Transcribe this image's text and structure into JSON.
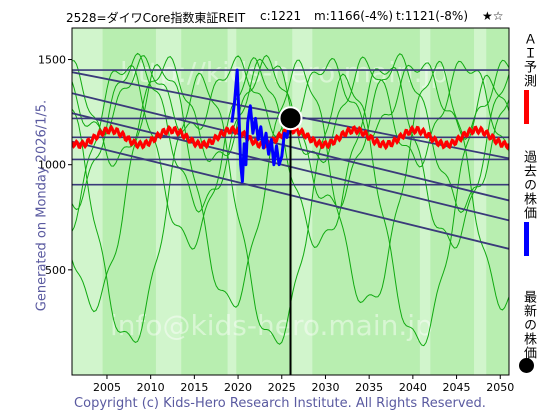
{
  "header": {
    "code_name": "2528=ダイワCore指数東証REIT",
    "current": "c:1221",
    "medium": "m:1166(-4%)",
    "target": "t:1121(-8%)",
    "stars": "★☆"
  },
  "generated": "Generated on Monday 2026/1/5.",
  "legend": {
    "ai_forecast": "ＡＩ予測",
    "past_price": "過去の株価",
    "latest_price": "最新の株価"
  },
  "watermarks": [
    "http://kids-hero.main.jp",
    "info@kids-hero.main.jp"
  ],
  "footer": "Copyright (c) Kids-Hero Research Institute. All Rights Reserved.",
  "colors": {
    "background_green": "#b8eeb0",
    "light_band": "#e6fbe3",
    "ai_forecast": "#ff0000",
    "past_price": "#0000ff",
    "trend_lines": "#3a3a7a",
    "envelope_lines": "#11aa11",
    "marker": "#000000"
  },
  "chart_data": {
    "type": "line",
    "xlim": [
      2001,
      2051
    ],
    "ylim": [
      0,
      1650
    ],
    "x_ticks": [
      2005,
      2010,
      2015,
      2020,
      2025,
      2030,
      2035,
      2040,
      2045,
      2050
    ],
    "y_ticks": [
      500,
      1000,
      1500
    ],
    "horizontal_lines": [
      1450,
      1220,
      1130,
      1025,
      905
    ],
    "trend_lines": [
      {
        "x": [
          2001,
          2051
        ],
        "y": [
          1440,
          1030
        ]
      },
      {
        "x": [
          2001,
          2051
        ],
        "y": [
          1340,
          830
        ]
      },
      {
        "x": [
          2001,
          2051
        ],
        "y": [
          1245,
          735
        ]
      },
      {
        "x": [
          2001,
          2051
        ],
        "y": [
          1110,
          600
        ]
      }
    ],
    "latest": {
      "x": 2026.0,
      "y": 1221
    },
    "past_price": [
      [
        2019.3,
        1200
      ],
      [
        2019.6,
        1300
      ],
      [
        2019.9,
        1450
      ],
      [
        2020.1,
        1240
      ],
      [
        2020.3,
        1000
      ],
      [
        2020.5,
        920
      ],
      [
        2020.7,
        1100
      ],
      [
        2020.9,
        1000
      ],
      [
        2021.1,
        1200
      ],
      [
        2021.4,
        1280
      ],
      [
        2021.7,
        1150
      ],
      [
        2022.0,
        1220
      ],
      [
        2022.3,
        1120
      ],
      [
        2022.6,
        1180
      ],
      [
        2022.9,
        1080
      ],
      [
        2023.2,
        1150
      ],
      [
        2023.5,
        1050
      ],
      [
        2023.8,
        1120
      ],
      [
        2024.1,
        1000
      ],
      [
        2024.4,
        1090
      ],
      [
        2024.7,
        1000
      ],
      [
        2025.0,
        1040
      ],
      [
        2025.3,
        1150
      ],
      [
        2025.6,
        1130
      ],
      [
        2026.0,
        1221
      ]
    ],
    "ai_forecast": {
      "x_range": [
        2001,
        2051
      ],
      "center": 1130,
      "amplitude": 35,
      "note": "wavy forecast line around 1130"
    }
  }
}
